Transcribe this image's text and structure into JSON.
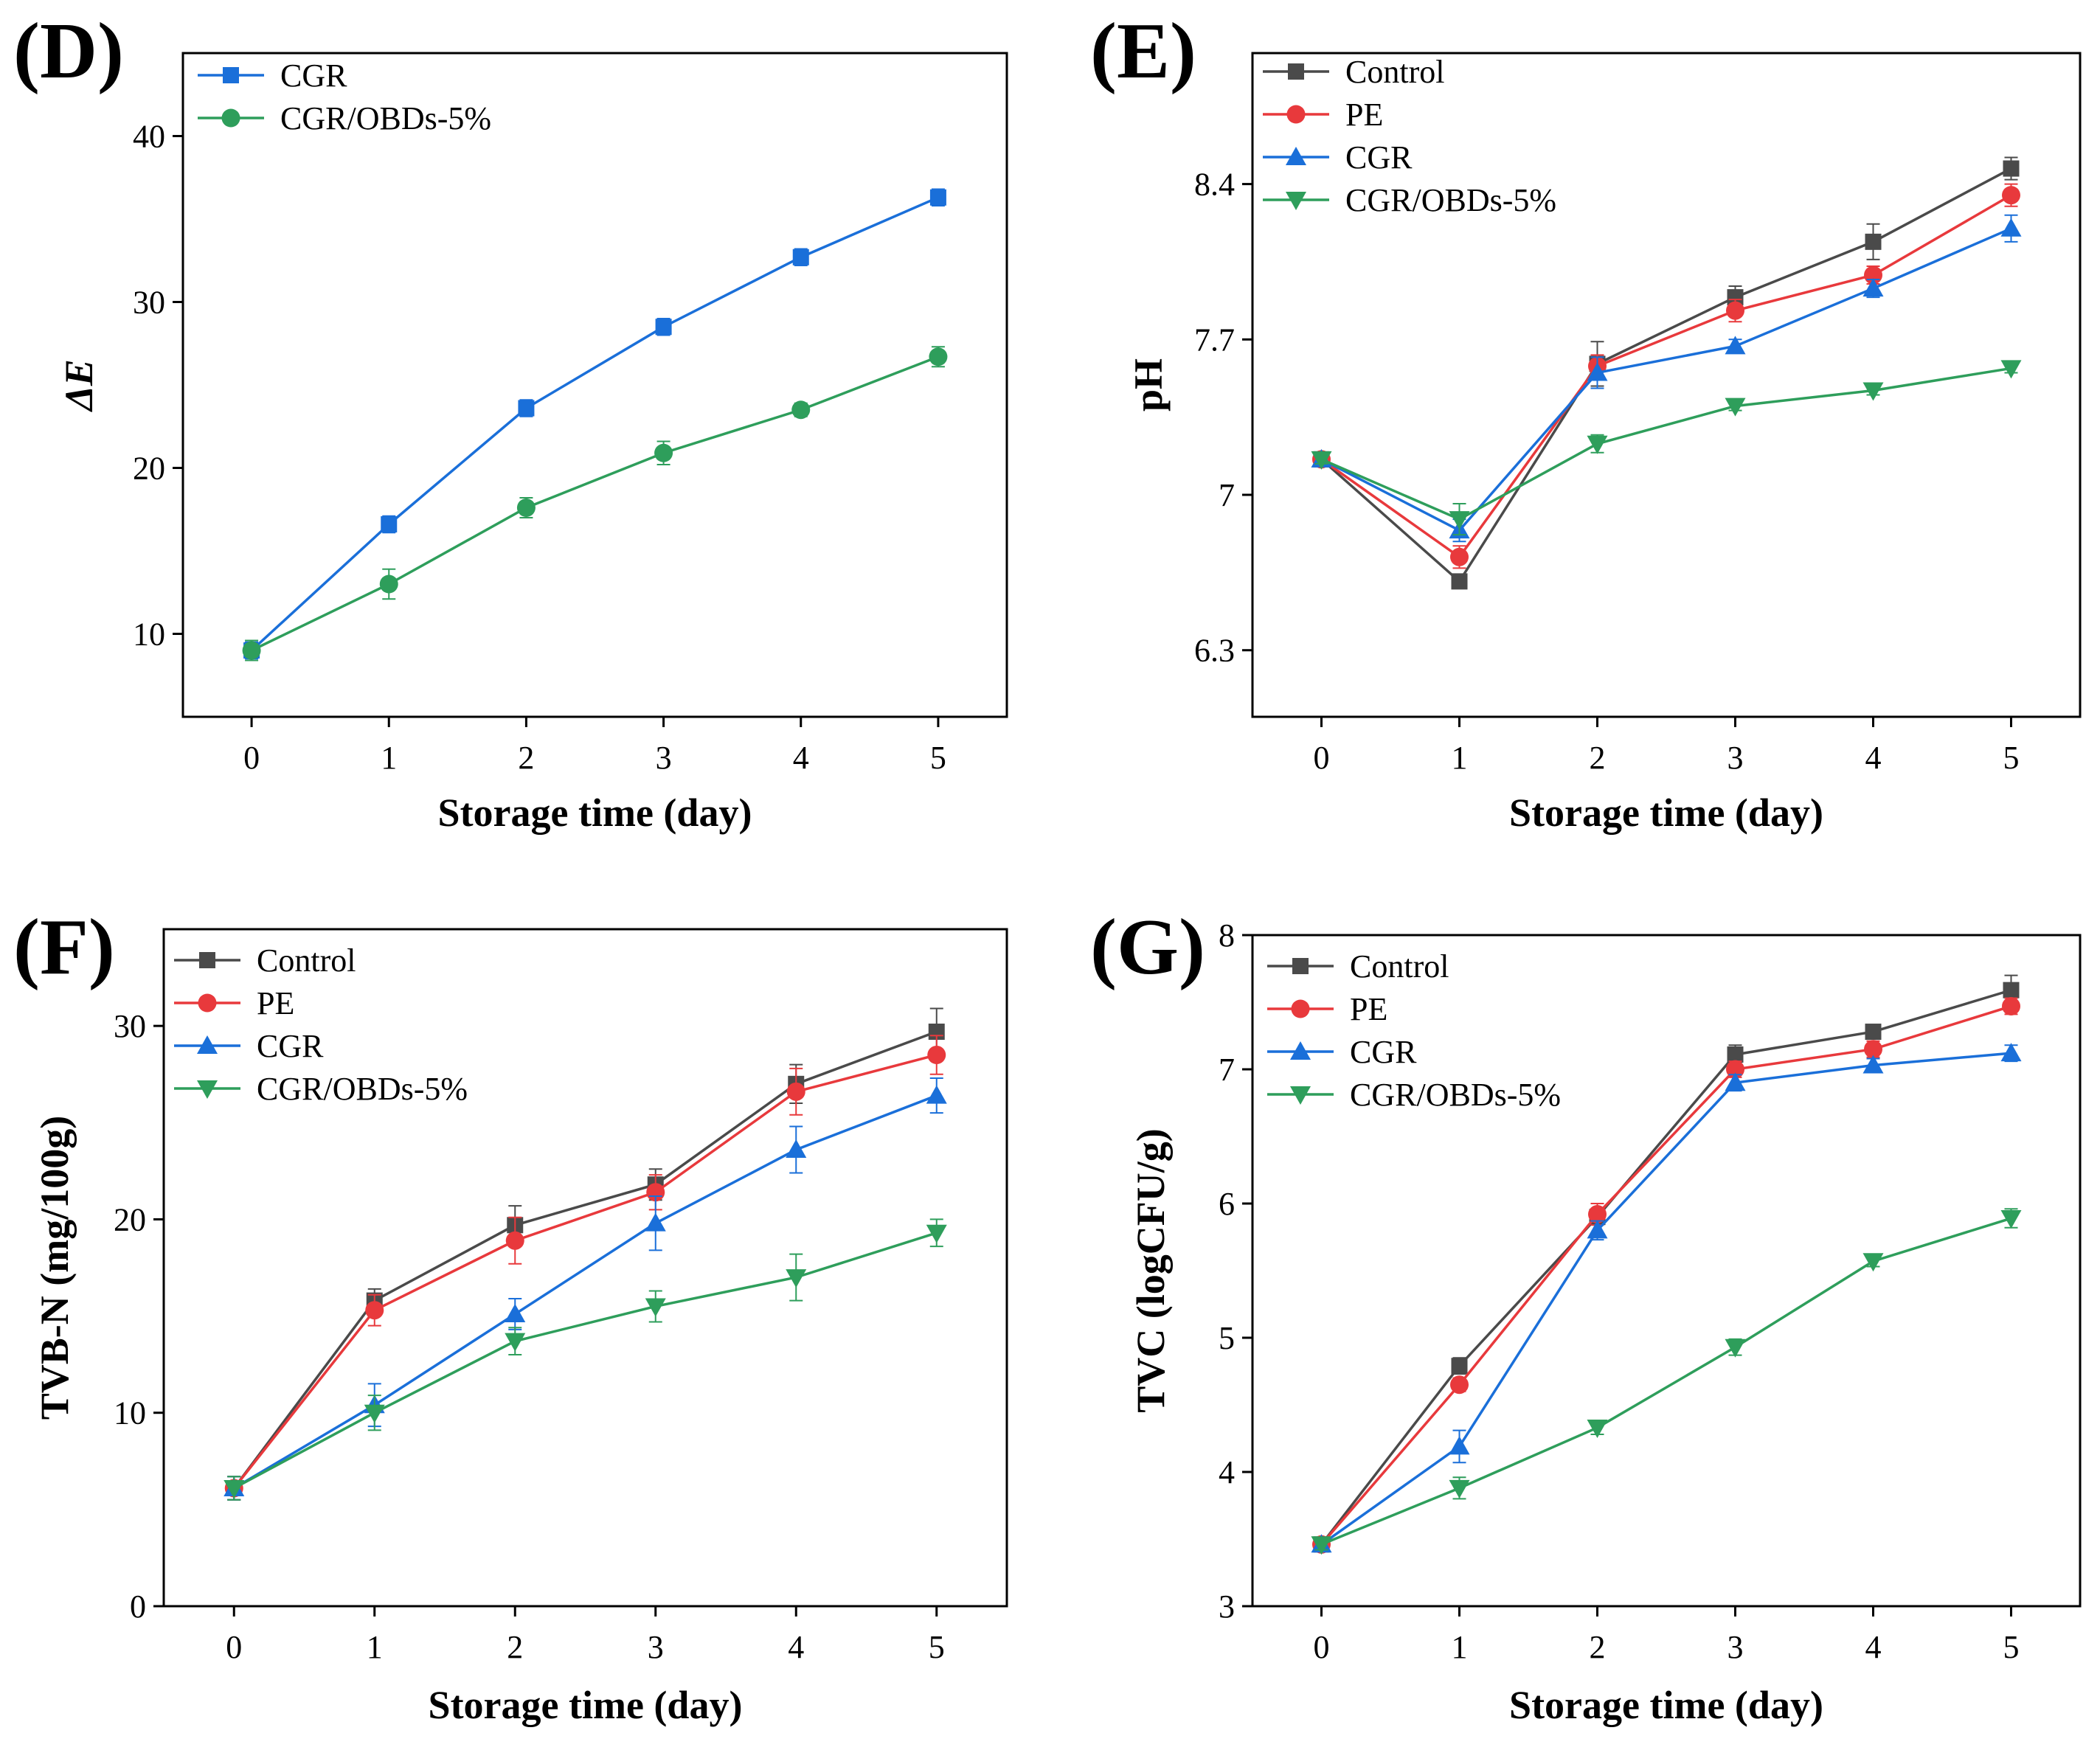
{
  "figure": {
    "panel_count": 4
  },
  "colors": {
    "Control": "#4a4a4a",
    "PE": "#e8393c",
    "CGR": "#1a6fd9",
    "CGR/OBDs-5%": "#2e9e5b",
    "axis": "#000000"
  },
  "chart_data": [
    {
      "panel": "(D)",
      "type": "line",
      "xlabel": "Storage time (day)",
      "ylabel": "ΔE",
      "ylabel_italic": true,
      "x": [
        0,
        1,
        2,
        3,
        4,
        5
      ],
      "xlim": [
        -0.5,
        5.5
      ],
      "ylim": [
        5,
        45
      ],
      "yticks": [
        10,
        20,
        30,
        40
      ],
      "series": [
        {
          "name": "CGR",
          "marker": "square",
          "values": [
            9.0,
            16.6,
            23.6,
            28.5,
            32.7,
            36.3
          ],
          "errors": [
            0.5,
            0.5,
            0.5,
            0.5,
            0.5,
            0.5
          ]
        },
        {
          "name": "CGR/OBDs-5%",
          "marker": "circle",
          "values": [
            9.0,
            13.0,
            17.6,
            20.9,
            23.5,
            26.7
          ],
          "errors": [
            0.6,
            0.9,
            0.6,
            0.7,
            0.4,
            0.6
          ]
        }
      ]
    },
    {
      "panel": "(E)",
      "type": "line",
      "xlabel": "Storage time (day)",
      "ylabel": "pH",
      "ylabel_italic": false,
      "x": [
        0,
        1,
        2,
        3,
        4,
        5
      ],
      "xlim": [
        -0.5,
        5.5
      ],
      "ylim": [
        6.0,
        8.99
      ],
      "yticks": [
        6.3,
        7.0,
        7.7,
        8.4
      ],
      "series": [
        {
          "name": "Control",
          "marker": "square",
          "values": [
            7.16,
            6.61,
            7.59,
            7.89,
            8.14,
            8.47
          ],
          "errors": [
            0.02,
            0.03,
            0.1,
            0.05,
            0.08,
            0.05
          ]
        },
        {
          "name": "PE",
          "marker": "circle",
          "values": [
            7.16,
            6.72,
            7.58,
            7.83,
            7.99,
            8.35
          ],
          "errors": [
            0.02,
            0.05,
            0.05,
            0.05,
            0.04,
            0.05
          ]
        },
        {
          "name": "CGR",
          "marker": "triangle-up",
          "values": [
            7.16,
            6.84,
            7.55,
            7.67,
            7.93,
            8.2
          ],
          "errors": [
            0.02,
            0.05,
            0.07,
            0.03,
            0.04,
            0.06
          ]
        },
        {
          "name": "CGR/OBDs-5%",
          "marker": "triangle-down",
          "values": [
            7.16,
            6.89,
            7.23,
            7.4,
            7.47,
            7.57
          ],
          "errors": [
            0.02,
            0.07,
            0.04,
            0.02,
            0.02,
            0.02
          ]
        }
      ]
    },
    {
      "panel": "(F)",
      "type": "line",
      "xlabel": "Storage time (day)",
      "ylabel": "TVB-N (mg/100g)",
      "ylabel_italic": false,
      "x": [
        0,
        1,
        2,
        3,
        4,
        5
      ],
      "xlim": [
        -0.5,
        5.5
      ],
      "ylim": [
        0,
        35
      ],
      "yticks": [
        0,
        10,
        20,
        30
      ],
      "series": [
        {
          "name": "Control",
          "marker": "square",
          "values": [
            6.1,
            15.8,
            19.7,
            21.8,
            27.0,
            29.7
          ],
          "errors": [
            0.6,
            0.6,
            1.0,
            0.8,
            1.0,
            1.2
          ]
        },
        {
          "name": "PE",
          "marker": "circle",
          "values": [
            6.1,
            15.3,
            18.9,
            21.4,
            26.6,
            28.5
          ],
          "errors": [
            0.6,
            0.8,
            1.2,
            0.9,
            1.2,
            1.0
          ]
        },
        {
          "name": "CGR",
          "marker": "triangle-up",
          "values": [
            6.1,
            10.4,
            15.1,
            19.8,
            23.6,
            26.4
          ],
          "errors": [
            0.6,
            1.1,
            0.8,
            1.4,
            1.2,
            0.9
          ]
        },
        {
          "name": "CGR/OBDs-5%",
          "marker": "triangle-down",
          "values": [
            6.1,
            10.0,
            13.7,
            15.5,
            17.0,
            19.3
          ],
          "errors": [
            0.6,
            0.9,
            0.7,
            0.8,
            1.2,
            0.7
          ]
        }
      ]
    },
    {
      "panel": "(G)",
      "type": "line",
      "xlabel": "Storage time (day)",
      "ylabel": "TVC (logCFU/g)",
      "ylabel_italic": false,
      "x": [
        0,
        1,
        2,
        3,
        4,
        5
      ],
      "xlim": [
        -0.5,
        5.5
      ],
      "ylim": [
        3,
        8
      ],
      "yticks": [
        3,
        4,
        5,
        6,
        7,
        8
      ],
      "series": [
        {
          "name": "Control",
          "marker": "square",
          "values": [
            3.46,
            4.79,
            5.9,
            7.11,
            7.28,
            7.59
          ],
          "errors": [
            0.04,
            0.06,
            0.06,
            0.07,
            0.05,
            0.11
          ]
        },
        {
          "name": "PE",
          "marker": "circle",
          "values": [
            3.46,
            4.65,
            5.92,
            7.0,
            7.15,
            7.47
          ],
          "errors": [
            0.04,
            0.05,
            0.08,
            0.06,
            0.06,
            0.06
          ]
        },
        {
          "name": "CGR",
          "marker": "triangle-up",
          "values": [
            3.46,
            4.19,
            5.8,
            6.9,
            7.03,
            7.12
          ],
          "errors": [
            0.04,
            0.12,
            0.07,
            0.06,
            0.05,
            0.06
          ]
        },
        {
          "name": "CGR/OBDs-5%",
          "marker": "triangle-down",
          "values": [
            3.46,
            3.88,
            4.33,
            4.93,
            5.57,
            5.89
          ],
          "errors": [
            0.04,
            0.08,
            0.05,
            0.06,
            0.04,
            0.07
          ]
        }
      ]
    }
  ]
}
